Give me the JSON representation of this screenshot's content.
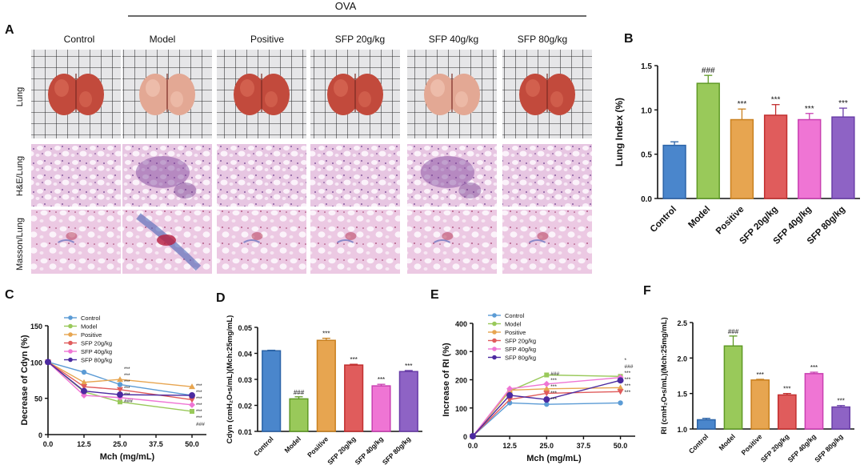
{
  "figure": {
    "ova_label": "OVA",
    "panel_labels": [
      "A",
      "B",
      "C",
      "D",
      "E",
      "F"
    ],
    "groups": [
      "Control",
      "Model",
      "Positive",
      "SFP 20g/kg",
      "SFP 40g/kg",
      "SFP 80g/kg"
    ],
    "row_labels": [
      "Lung",
      "H&E/Lung",
      "Masson/Lung"
    ]
  },
  "colors": {
    "groups": [
      "#4a86cc",
      "#99c95a",
      "#e7a550",
      "#e05c5c",
      "#ef75d4",
      "#8e63c5"
    ],
    "group_edges": [
      "#2c64a8",
      "#5f9a25",
      "#c9801f",
      "#c22f2f",
      "#c93fb1",
      "#6a3ea8"
    ],
    "line_colors": [
      "#5b9bd5",
      "#99c95a",
      "#e7a550",
      "#e05c5c",
      "#ef75d4",
      "#4b2aa0"
    ],
    "grid_bg": "#e8e8ea",
    "he_bg": "#f1ddee",
    "masson_bg": "#f3e3ef"
  },
  "chart_data": [
    {
      "panel": "B",
      "type": "bar",
      "categories": [
        "Control",
        "Model",
        "Positive",
        "SFP 20g/kg",
        "SFP 40g/kg",
        "SFP 80g/kg"
      ],
      "values": [
        0.6,
        1.3,
        0.89,
        0.94,
        0.89,
        0.92
      ],
      "errors": [
        0.04,
        0.09,
        0.12,
        0.12,
        0.07,
        0.1
      ],
      "annotations": [
        "",
        "###",
        "***",
        "***",
        "***",
        "***"
      ],
      "ylabel": "Lung Index (%)",
      "xlabel": "",
      "ylim": [
        0,
        1.5
      ],
      "yticks": [
        "0.0",
        "0.5",
        "1.0",
        "1.5"
      ]
    },
    {
      "panel": "C",
      "type": "line",
      "x": [
        0,
        12.5,
        25,
        50
      ],
      "xticks": [
        "0.0",
        "12.5",
        "25.0",
        "37.5",
        "50.0"
      ],
      "xlim": [
        0,
        55
      ],
      "ylim": [
        0,
        150
      ],
      "yticks": [
        "0",
        "50",
        "100",
        "150"
      ],
      "xlabel": "Mch (mg/mL)",
      "ylabel": "Decrease of Cdyn (%)",
      "series": [
        {
          "name": "Control",
          "values": [
            100,
            86,
            69,
            54
          ]
        },
        {
          "name": "Model",
          "values": [
            100,
            59,
            45,
            32
          ]
        },
        {
          "name": "Positive",
          "values": [
            100,
            72,
            76,
            66
          ]
        },
        {
          "name": "SFP 20g/kg",
          "values": [
            100,
            66,
            62,
            48
          ]
        },
        {
          "name": "SFP 40g/kg",
          "values": [
            100,
            54,
            51,
            41
          ]
        },
        {
          "name": "SFP 80g/kg",
          "values": [
            100,
            60,
            55,
            54
          ]
        }
      ],
      "end_annotations": [
        "***",
        "***",
        "***",
        "***",
        "***",
        "***",
        "###"
      ],
      "mid_annotations": [
        "***",
        "***",
        "***",
        "***",
        "***",
        "###"
      ]
    },
    {
      "panel": "D",
      "type": "bar",
      "categories": [
        "Control",
        "Model",
        "Positive",
        "SFP 20g/kg",
        "SFP 40g/kg",
        "SFP 80g/kg"
      ],
      "values": [
        0.041,
        0.0225,
        0.045,
        0.0355,
        0.0275,
        0.033
      ],
      "errors": [
        0.0002,
        0.0008,
        0.0008,
        0.0003,
        0.0006,
        0.0004
      ],
      "annotations": [
        "",
        "###",
        "***",
        "***",
        "***",
        "***"
      ],
      "ylabel": "Cdyn (cmH₂O•s/mL)(Mch:25mg/mL)",
      "xlabel": "",
      "ylim": [
        0.01,
        0.05
      ],
      "yticks": [
        "0.01",
        "0.02",
        "0.03",
        "0.04",
        "0.05"
      ]
    },
    {
      "panel": "E",
      "type": "line",
      "x": [
        0,
        12.5,
        25,
        50
      ],
      "xticks": [
        "0.0",
        "12.5",
        "25.0",
        "37.5",
        "50.0"
      ],
      "xlim": [
        0,
        55
      ],
      "ylim": [
        0,
        400
      ],
      "yticks": [
        "0",
        "100",
        "200",
        "300",
        "400"
      ],
      "xlabel": "Mch (mg/mL)",
      "ylabel": "Increase of RI (%)",
      "series": [
        {
          "name": "Control",
          "values": [
            0,
            118,
            113,
            118
          ]
        },
        {
          "name": "Model",
          "values": [
            0,
            160,
            217,
            212
          ]
        },
        {
          "name": "Positive",
          "values": [
            0,
            163,
            168,
            172
          ]
        },
        {
          "name": "SFP 20g/kg",
          "values": [
            0,
            130,
            152,
            158
          ]
        },
        {
          "name": "SFP 40g/kg",
          "values": [
            0,
            168,
            185,
            208
          ]
        },
        {
          "name": "SFP 80g/kg",
          "values": [
            0,
            145,
            130,
            198
          ]
        }
      ],
      "end_annotations": [
        "*",
        "###",
        "***",
        "***",
        "***",
        "***"
      ],
      "mid_annotations": [
        "###",
        "***",
        "***",
        "***",
        "***"
      ]
    },
    {
      "panel": "F",
      "type": "bar",
      "categories": [
        "Control",
        "Model",
        "Positive",
        "SFP 20g/kg",
        "SFP 40g/kg",
        "SFP 80g/kg"
      ],
      "values": [
        1.13,
        2.17,
        1.69,
        1.48,
        1.78,
        1.31
      ],
      "errors": [
        0.02,
        0.14,
        0.01,
        0.02,
        0.02,
        0.02
      ],
      "annotations": [
        "",
        "###",
        "***",
        "***",
        "***",
        "***"
      ],
      "ylabel": "RI (cmH₂O•s/mL)(Mch:25mg/mL)",
      "xlabel": "",
      "ylim": [
        1.0,
        2.5
      ],
      "yticks": [
        "1.0",
        "1.5",
        "2.0",
        "2.5"
      ]
    }
  ]
}
